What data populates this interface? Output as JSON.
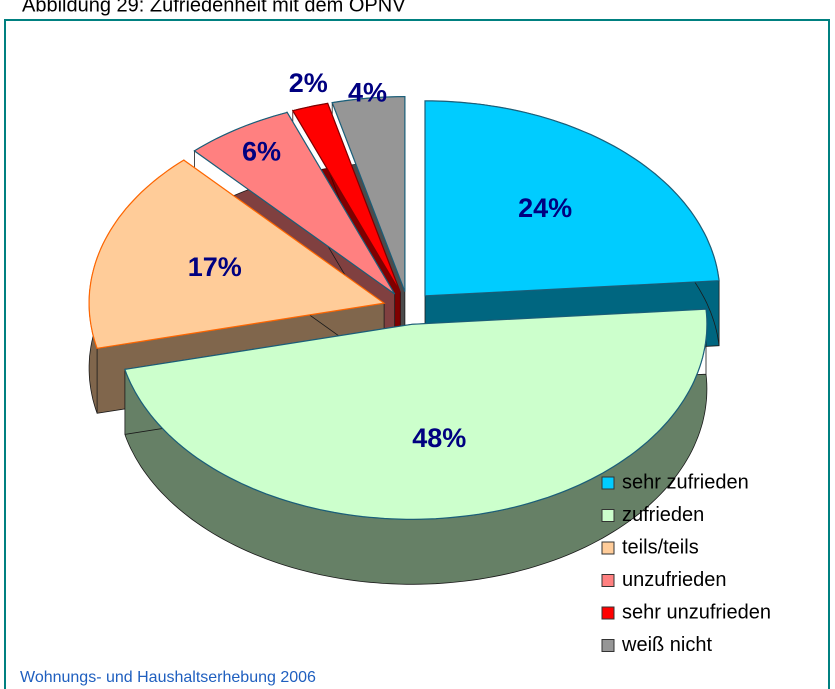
{
  "chart_data": {
    "type": "pie",
    "title": "Abbildung 29: Zufriedenheit mit dem ÖPNV",
    "source": "Wohnungs- und Haushaltserhebung 2006",
    "series": [
      {
        "name": "Zufriedenheit",
        "categories": [
          "sehr zufrieden",
          "zufrieden",
          "teils/teils",
          "unzufrieden",
          "sehr unzufrieden",
          "weiß nicht"
        ],
        "values": [
          24,
          48,
          17,
          6,
          2,
          4
        ],
        "value_labels": [
          "24%",
          "48%",
          "17%",
          "6%",
          "2%",
          "4%"
        ],
        "colors": [
          "#00ccff",
          "#ccffcc",
          "#ffcc99",
          "#ff8080",
          "#ff0000",
          "#969696"
        ]
      }
    ],
    "legend": "bottom-right"
  }
}
